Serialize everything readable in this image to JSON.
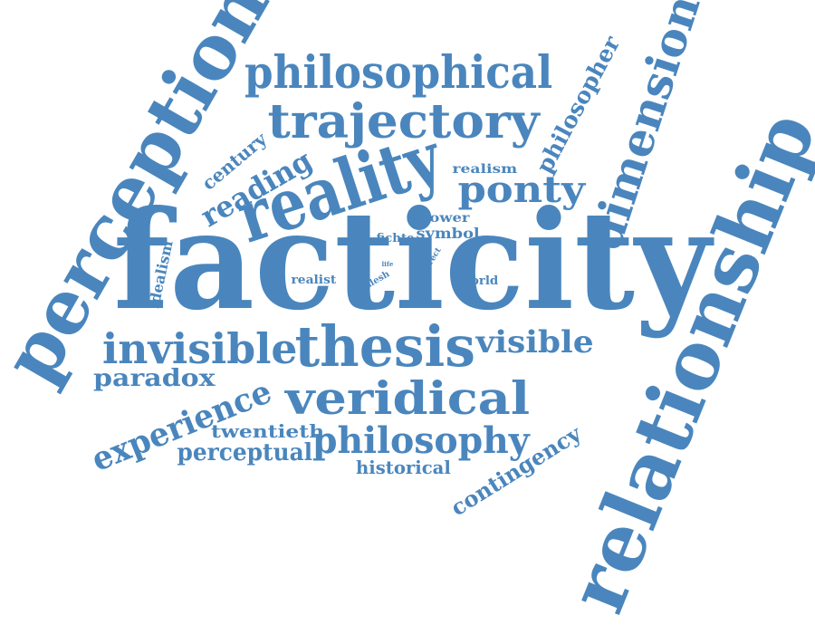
{
  "word_cloud": {
    "color": "#4a86bd",
    "words": [
      {
        "text": "facticity"
      },
      {
        "text": "perception"
      },
      {
        "text": "relationship"
      },
      {
        "text": "reality"
      },
      {
        "text": "philosophical"
      },
      {
        "text": "trajectory"
      },
      {
        "text": "dimension"
      },
      {
        "text": "thesis"
      },
      {
        "text": "veridical"
      },
      {
        "text": "invisible"
      },
      {
        "text": "philosophy"
      },
      {
        "text": "experience"
      },
      {
        "text": "ponty"
      },
      {
        "text": "philosopher"
      },
      {
        "text": "visible"
      },
      {
        "text": "contingency"
      },
      {
        "text": "reading"
      },
      {
        "text": "paradox"
      },
      {
        "text": "perceptual"
      },
      {
        "text": "twentieth"
      },
      {
        "text": "historical"
      },
      {
        "text": "century"
      },
      {
        "text": "idealism"
      },
      {
        "text": "realism"
      },
      {
        "text": "symbol"
      },
      {
        "text": "power"
      },
      {
        "text": "fichte"
      },
      {
        "text": "realist"
      },
      {
        "text": "world"
      },
      {
        "text": "flesh"
      },
      {
        "text": "direct"
      },
      {
        "text": "life"
      }
    ]
  }
}
